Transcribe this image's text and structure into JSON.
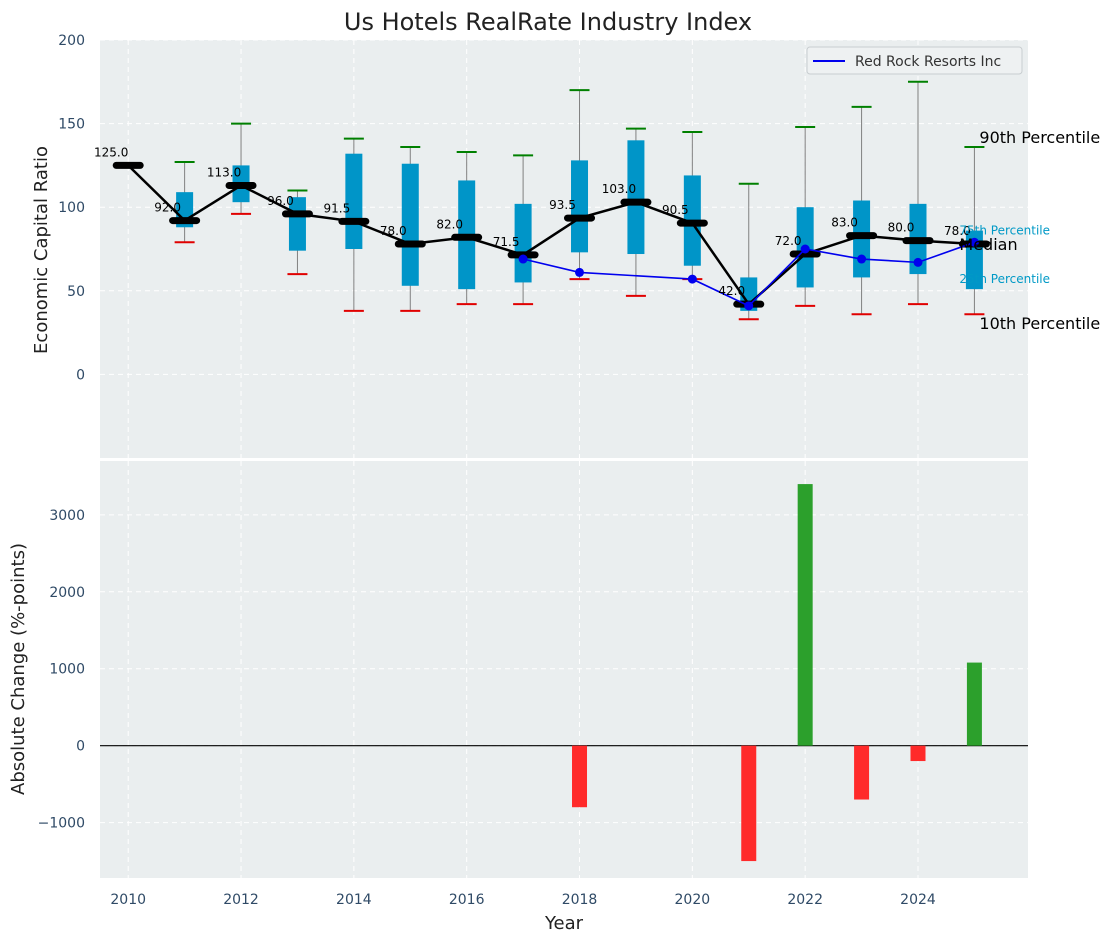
{
  "chart_data": [
    {
      "type": "box",
      "title": "Us Hotels RealRate Industry Index",
      "ylabel": "Economic Capital Ratio",
      "ylim": [
        -50,
        200
      ],
      "yticks": [
        0,
        50,
        100,
        150,
        200
      ],
      "grid": true,
      "legend": {
        "position": "top-right",
        "entries": [
          "Red Rock Resorts Inc"
        ]
      },
      "colors": {
        "box": "#0095c8",
        "median": "#000000",
        "company": "#0000ee",
        "p90": "#008000",
        "p10": "#e00000",
        "whisker": "#808080",
        "band_label": "#0099c6"
      },
      "years": [
        2010,
        2011,
        2012,
        2013,
        2014,
        2015,
        2016,
        2017,
        2018,
        2019,
        2020,
        2021,
        2022,
        2023,
        2024,
        2025
      ],
      "p10": [
        125,
        79,
        96,
        60,
        38,
        38,
        42,
        42,
        57,
        47,
        57,
        33,
        41,
        36,
        42,
        36
      ],
      "p25": [
        125,
        88,
        103,
        74,
        75,
        53,
        51,
        55,
        73,
        72,
        65,
        38,
        52,
        58,
        60,
        51
      ],
      "median": [
        125.0,
        92.0,
        113.0,
        96.0,
        91.5,
        78.0,
        82.0,
        71.5,
        93.5,
        103.0,
        90.5,
        42.0,
        72.0,
        83.0,
        80.0,
        78.0
      ],
      "p75": [
        125,
        109,
        125,
        106,
        132,
        126,
        116,
        102,
        128,
        140,
        119,
        58,
        100,
        104,
        102,
        86
      ],
      "p90": [
        125,
        127,
        150,
        110,
        141,
        136,
        133,
        131,
        170,
        147,
        145,
        114,
        148,
        160,
        175,
        136
      ],
      "median_labels": [
        "125.0",
        "92.0",
        "113.0",
        "96.0",
        "91.5",
        "78.0",
        "82.0",
        "71.5",
        "93.5",
        "103.0",
        "90.5",
        "42.0",
        "72.0",
        "83.0",
        "80.0",
        "78.0"
      ],
      "company": {
        "name": "Red Rock Resorts Inc",
        "years": [
          2017,
          2018,
          2020,
          2021,
          2022,
          2023,
          2024,
          2025
        ],
        "values": [
          69,
          61,
          57,
          41,
          75,
          69,
          67,
          79
        ]
      },
      "band_labels": {
        "p90": "90th Percentile",
        "p75": "75th Percentile",
        "median": "Median",
        "p25": "25th Percentile",
        "p10": "10th Percentile"
      }
    },
    {
      "type": "bar",
      "ylabel": "Absolute Change (%-points)",
      "xlabel": "Year",
      "ylim": [
        -1720,
        3700
      ],
      "yticks": [
        -1000,
        0,
        1000,
        2000,
        3000
      ],
      "xticks": [
        2010,
        2012,
        2014,
        2016,
        2018,
        2020,
        2022,
        2024
      ],
      "xlim": [
        2009.5,
        2025.95
      ],
      "colors": {
        "positive": "#2ca02c",
        "negative": "#ff2a2a"
      },
      "years": [
        2018,
        2021,
        2022,
        2023,
        2024,
        2025
      ],
      "values": [
        -800,
        -1500,
        3400,
        -700,
        -200,
        1080
      ]
    }
  ]
}
